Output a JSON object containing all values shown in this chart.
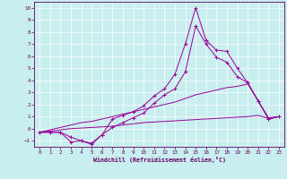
{
  "background_color": "#c8eef0",
  "line_color": "#990099",
  "spine_color": "#660066",
  "xlabel": "Windchill (Refroidissement éolien,°C)",
  "xlim": [
    -0.5,
    23.5
  ],
  "ylim": [
    -1.5,
    10.5
  ],
  "x_ticks": [
    0,
    1,
    2,
    3,
    4,
    5,
    6,
    7,
    8,
    9,
    10,
    11,
    12,
    13,
    14,
    15,
    16,
    17,
    18,
    19,
    20,
    21,
    22,
    23
  ],
  "y_ticks": [
    -1,
    0,
    1,
    2,
    3,
    4,
    5,
    6,
    7,
    8,
    9,
    10
  ],
  "lines": [
    {
      "x": [
        0,
        1,
        2,
        3,
        4,
        5,
        6,
        7,
        8,
        9,
        10,
        11,
        12,
        13,
        14,
        15,
        16,
        17,
        18,
        19,
        20,
        21,
        22,
        23
      ],
      "y": [
        -0.3,
        -0.3,
        -0.3,
        -1.1,
        -1.0,
        -1.2,
        -0.5,
        0.8,
        1.1,
        1.4,
        1.9,
        2.7,
        3.3,
        4.5,
        7.0,
        10.0,
        7.3,
        6.5,
        6.4,
        5.0,
        3.8,
        2.3,
        0.8,
        1.0
      ],
      "marker": true
    },
    {
      "x": [
        0,
        1,
        2,
        3,
        4,
        5,
        6,
        7,
        8,
        9,
        10,
        11,
        12,
        13,
        14,
        15,
        16,
        17,
        18,
        19,
        20,
        21,
        22,
        23
      ],
      "y": [
        -0.3,
        -0.3,
        -0.3,
        -0.7,
        -1.0,
        -1.3,
        -0.5,
        0.1,
        0.5,
        0.9,
        1.3,
        2.1,
        2.8,
        3.3,
        4.7,
        8.5,
        7.0,
        5.9,
        5.5,
        4.3,
        3.8,
        2.3,
        0.8,
        1.0
      ],
      "marker": true
    },
    {
      "x": [
        0,
        1,
        2,
        3,
        4,
        5,
        6,
        7,
        8,
        9,
        10,
        11,
        12,
        13,
        14,
        15,
        16,
        17,
        18,
        19,
        20,
        21,
        22,
        23
      ],
      "y": [
        -0.3,
        -0.1,
        0.1,
        0.3,
        0.5,
        0.6,
        0.8,
        1.0,
        1.2,
        1.4,
        1.6,
        1.8,
        2.0,
        2.2,
        2.5,
        2.8,
        3.0,
        3.2,
        3.4,
        3.5,
        3.7,
        2.3,
        0.9,
        1.0
      ],
      "marker": false
    },
    {
      "x": [
        0,
        1,
        2,
        3,
        4,
        5,
        6,
        7,
        8,
        9,
        10,
        11,
        12,
        13,
        14,
        15,
        16,
        17,
        18,
        19,
        20,
        21,
        22,
        23
      ],
      "y": [
        -0.3,
        -0.2,
        -0.1,
        0.0,
        0.05,
        0.1,
        0.15,
        0.2,
        0.3,
        0.4,
        0.5,
        0.55,
        0.6,
        0.65,
        0.7,
        0.75,
        0.8,
        0.85,
        0.9,
        0.95,
        1.0,
        1.1,
        0.85,
        1.0
      ],
      "marker": false
    }
  ]
}
